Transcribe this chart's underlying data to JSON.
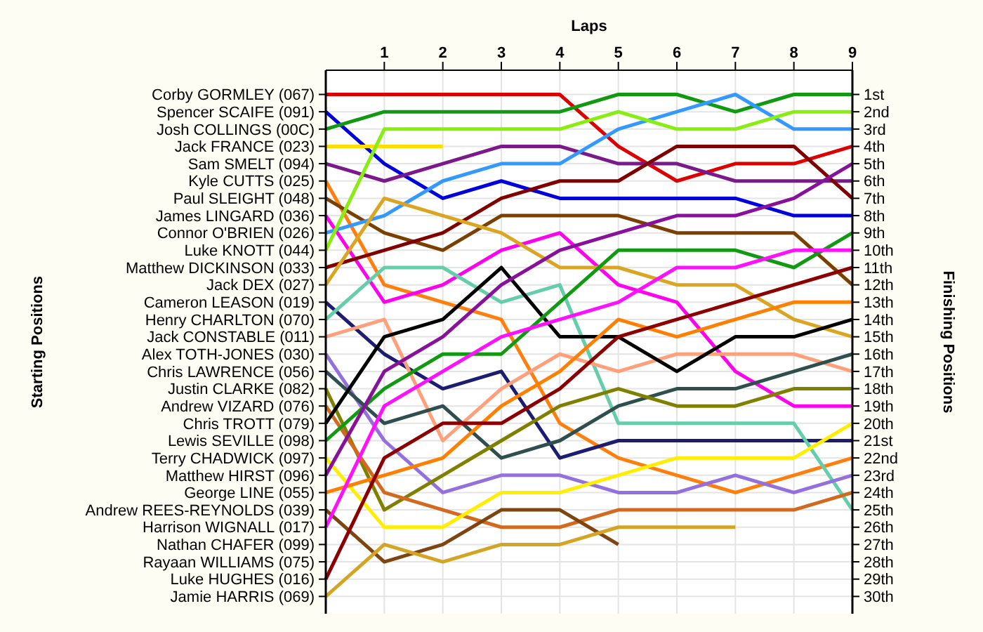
{
  "chart_data": {
    "type": "line",
    "xlabel": "Laps",
    "ylabel": "Finishing Positions",
    "grid": true,
    "x": [
      0,
      1,
      2,
      3,
      4,
      5,
      6,
      7,
      8,
      9
    ],
    "xlim": [
      0,
      9
    ],
    "xticks": [
      1,
      2,
      3,
      4,
      5,
      6,
      7,
      8,
      9
    ],
    "ylim": [
      31,
      -0.4
    ],
    "yticks": [
      {
        "value": 1,
        "label": "1st"
      },
      {
        "value": 2,
        "label": "2nd"
      },
      {
        "value": 3,
        "label": "3rd"
      },
      {
        "value": 4,
        "label": "4th"
      },
      {
        "value": 5,
        "label": "5th"
      },
      {
        "value": 6,
        "label": "6th"
      },
      {
        "value": 7,
        "label": "7th"
      },
      {
        "value": 8,
        "label": "8th"
      },
      {
        "value": 9,
        "label": "9th"
      },
      {
        "value": 10,
        "label": "10th"
      },
      {
        "value": 11,
        "label": "11th"
      },
      {
        "value": 12,
        "label": "12th"
      },
      {
        "value": 13,
        "label": "13th"
      },
      {
        "value": 14,
        "label": "14th"
      },
      {
        "value": 15,
        "label": "15th"
      },
      {
        "value": 16,
        "label": "16th"
      },
      {
        "value": 17,
        "label": "17th"
      },
      {
        "value": 18,
        "label": "18th"
      },
      {
        "value": 19,
        "label": "19th"
      },
      {
        "value": 20,
        "label": "20th"
      },
      {
        "value": 21,
        "label": "21st"
      },
      {
        "value": 22,
        "label": "22nd"
      },
      {
        "value": 23,
        "label": "23rd"
      },
      {
        "value": 24,
        "label": "24th"
      },
      {
        "value": 25,
        "label": "25th"
      },
      {
        "value": 26,
        "label": "26th"
      },
      {
        "value": 27,
        "label": "27th"
      },
      {
        "value": 28,
        "label": "28th"
      },
      {
        "value": 29,
        "label": "29th"
      },
      {
        "value": 30,
        "label": "30th"
      }
    ],
    "annotations": [
      "Starting Positions",
      "Corby GORMLEY (067)",
      "Spencer SCAIFE (091)",
      "Josh COLLINGS (00C)",
      "Jack FRANCE (023)",
      "Sam SMELT (094)",
      "Kyle CUTTS (025)",
      "Paul SLEIGHT (048)",
      "James LINGARD (036)",
      "Connor O'BRIEN (026)",
      "Luke KNOTT (044)",
      "Matthew DICKINSON (033)",
      "Jack DEX (027)",
      "Cameron LEASON (019)",
      "Henry CHARLTON (070)",
      "Jack CONSTABLE (011)",
      "Alex TOTH-JONES (030)",
      "Chris LAWRENCE (056)",
      "Justin CLARKE (082)",
      "Andrew VIZARD (076)",
      "Chris TROTT (079)",
      "Lewis SEVILLE (098)",
      "Terry CHADWICK (097)",
      "Matthew HIRST (096)",
      "George LINE (055)",
      "Andrew REES-REYNOLDS (039)",
      "Harrison WIGNALL (017)",
      "Nathan CHAFER (099)",
      "Rayaan WILLIAMS (075)",
      "Luke HUGHES (016)",
      "Jamie HARRIS (069)"
    ],
    "series": [
      {
        "color": "#dd0000",
        "values": [
          1,
          1,
          1,
          1,
          1,
          4,
          6,
          5,
          5,
          4
        ]
      },
      {
        "color": "#0000dd",
        "values": [
          2,
          5,
          7,
          6,
          7,
          7,
          7,
          7,
          8,
          8
        ]
      },
      {
        "color": "#119911",
        "values": [
          3,
          2,
          2,
          2,
          2,
          1,
          1,
          2,
          1,
          1
        ]
      },
      {
        "color": "#ffdd00",
        "values": [
          4,
          4,
          4,
          null,
          null,
          null,
          null,
          null,
          null,
          null
        ]
      },
      {
        "color": "#7a1a8a",
        "values": [
          5,
          6,
          5,
          4,
          4,
          5,
          5,
          6,
          6,
          6
        ]
      },
      {
        "color": "#ff7f0e",
        "values": [
          6,
          12,
          13,
          14,
          20,
          22,
          23,
          24,
          23,
          22
        ]
      },
      {
        "color": "#7b3f00",
        "values": [
          7,
          9,
          10,
          8,
          8,
          8,
          9,
          9,
          9,
          12
        ]
      },
      {
        "color": "#ff00ee",
        "values": [
          8,
          13,
          12,
          10,
          9,
          12,
          13,
          17,
          19,
          19
        ]
      },
      {
        "color": "#3399ff",
        "values": [
          9,
          8,
          6,
          5,
          5,
          3,
          2,
          1,
          3,
          3
        ]
      },
      {
        "color": "#88ee11",
        "values": [
          10,
          3,
          3,
          3,
          3,
          2,
          3,
          3,
          2,
          2
        ]
      },
      {
        "color": "#800000",
        "values": [
          11,
          10,
          9,
          7,
          6,
          6,
          4,
          4,
          4,
          7
        ]
      },
      {
        "color": "#daa520",
        "values": [
          12,
          7,
          8,
          9,
          11,
          11,
          12,
          12,
          14,
          15
        ]
      },
      {
        "color": "#1c1c70",
        "values": [
          13,
          16,
          18,
          17,
          22,
          21,
          21,
          21,
          21,
          21
        ]
      },
      {
        "color": "#66cdaa",
        "values": [
          14,
          11,
          11,
          13,
          12,
          20,
          20,
          20,
          20,
          25
        ]
      },
      {
        "color": "#ffa07a",
        "values": [
          15,
          14,
          21,
          18,
          16,
          17,
          16,
          16,
          16,
          17
        ]
      },
      {
        "color": "#9370db",
        "values": [
          16,
          21,
          24,
          23,
          23,
          24,
          24,
          23,
          24,
          23
        ]
      },
      {
        "color": "#2f4f4f",
        "values": [
          17,
          20,
          19,
          22,
          21,
          19,
          18,
          18,
          17,
          16
        ]
      },
      {
        "color": "#808000",
        "values": [
          18,
          25,
          23,
          21,
          19,
          18,
          19,
          19,
          18,
          18
        ]
      },
      {
        "color": "#d2691e",
        "values": [
          19,
          24,
          25,
          26,
          26,
          25,
          25,
          25,
          25,
          24
        ]
      },
      {
        "color": "#000000",
        "values": [
          20,
          15,
          14,
          11,
          15,
          15,
          17,
          15,
          15,
          14
        ]
      },
      {
        "color": "#129912",
        "values": [
          21,
          18,
          16,
          16,
          13,
          10,
          10,
          10,
          11,
          9
        ]
      },
      {
        "color": "#ffee00",
        "values": [
          22,
          26,
          26,
          24,
          24,
          23,
          22,
          22,
          22,
          20
        ]
      },
      {
        "color": "#881199",
        "values": [
          23,
          17,
          15,
          12,
          10,
          9,
          8,
          8,
          7,
          5
        ]
      },
      {
        "color": "#ff8000",
        "values": [
          24,
          23,
          22,
          19,
          17,
          14,
          15,
          14,
          13,
          13
        ]
      },
      {
        "color": "#7f4510",
        "values": [
          25,
          28,
          27,
          25,
          25,
          27,
          null,
          null,
          null,
          null
        ]
      },
      {
        "color": "#ff11ff",
        "values": [
          26,
          19,
          17,
          15,
          14,
          13,
          11,
          11,
          10,
          10
        ]
      },
      {
        "color": "#8b0000",
        "values": [
          29,
          22,
          20,
          20,
          18,
          15,
          14,
          13,
          12,
          11
        ]
      },
      {
        "color": "#d4a524",
        "values": [
          30,
          27,
          28,
          27,
          27,
          26,
          26,
          26,
          null,
          null
        ]
      }
    ]
  }
}
